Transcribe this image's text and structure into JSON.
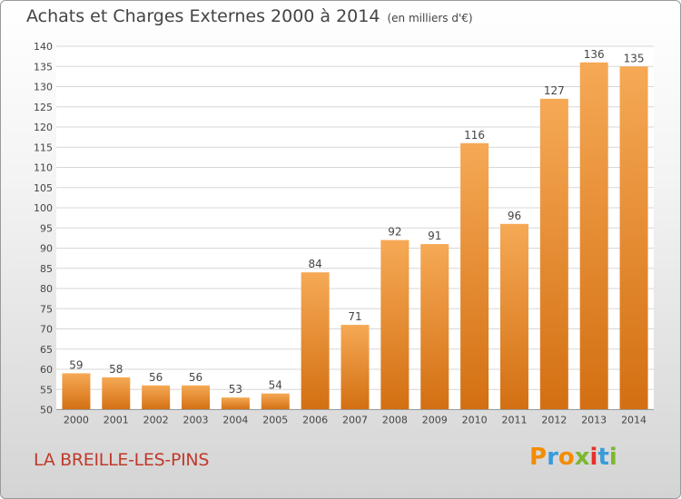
{
  "page": {
    "title": "Achats et Charges Externes 2000 à 2014",
    "unit": "(en milliers d'€)",
    "city": "LA BREILLE-LES-PINS",
    "logo": "Proxiti"
  },
  "colors": {
    "bar_light": "#f6a955",
    "bar_dark": "#d36f12",
    "grid": "#d7d7d7",
    "text": "#444444",
    "city": "#c0392b",
    "logo_letters": [
      "#f28c00",
      "#3a9bd9",
      "#f28c00",
      "#7cb82f",
      "#e5312b",
      "#3a9bd9",
      "#7cb82f"
    ]
  },
  "chart_data": {
    "type": "bar",
    "title": "Achats et Charges Externes 2000 à 2014",
    "subtitle": "(en milliers d'€)",
    "categories": [
      "2000",
      "2001",
      "2002",
      "2003",
      "2004",
      "2005",
      "2006",
      "2007",
      "2008",
      "2009",
      "2010",
      "2011",
      "2012",
      "2013",
      "2014"
    ],
    "values": [
      59,
      58,
      56,
      56,
      53,
      54,
      84,
      71,
      92,
      91,
      116,
      96,
      127,
      136,
      135
    ],
    "ylim": [
      50,
      140
    ],
    "yticks": [
      50,
      55,
      60,
      65,
      70,
      75,
      80,
      85,
      90,
      95,
      100,
      105,
      110,
      115,
      120,
      125,
      130,
      135,
      140
    ],
    "grid": true,
    "xlabel": "",
    "ylabel": ""
  }
}
